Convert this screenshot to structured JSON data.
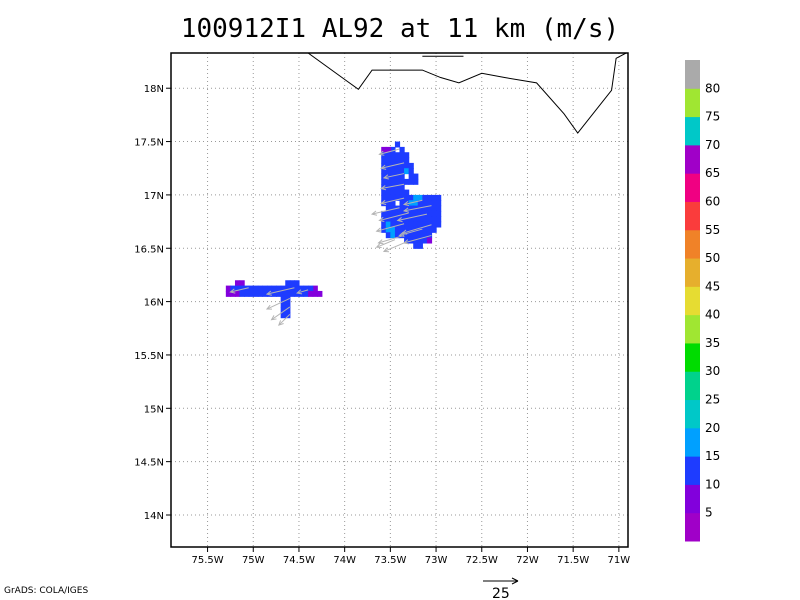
{
  "title": "100912I1 AL92 at 11 km (m/s)",
  "credit": "GrADS: COLA/IGES",
  "map": {
    "x_ticks": [
      "75.5W",
      "75W",
      "74.5W",
      "74W",
      "73.5W",
      "73W",
      "72.5W",
      "72W",
      "71.5W",
      "71W"
    ],
    "x_tick_values": [
      -75.5,
      -75,
      -74.5,
      -74,
      -73.5,
      -73,
      -72.5,
      -72,
      -71.5,
      -71
    ],
    "y_ticks": [
      "18N",
      "17.5N",
      "17N",
      "16.5N",
      "16N",
      "15.5N",
      "15N",
      "14.5N",
      "14N"
    ],
    "y_tick_values": [
      18,
      17.5,
      17,
      16.5,
      16,
      15.5,
      15,
      14.5,
      14
    ],
    "lon_range": [
      -75.9,
      -70.9
    ],
    "lat_range": [
      13.7,
      18.33
    ],
    "grid": true,
    "coastline_lonlat": [
      [
        -74.4,
        18.33
      ],
      [
        -73.98,
        18.07
      ],
      [
        -73.85,
        17.99
      ],
      [
        -73.7,
        18.17
      ],
      [
        -73.3,
        18.17
      ],
      [
        -73.15,
        18.17
      ],
      [
        -72.95,
        18.1
      ],
      [
        -72.75,
        18.05
      ],
      [
        -72.5,
        18.14
      ],
      [
        -72.25,
        18.1
      ],
      [
        -71.9,
        18.05
      ],
      [
        -71.6,
        17.76
      ],
      [
        -71.45,
        17.58
      ],
      [
        -71.08,
        17.98
      ],
      [
        -71.03,
        18.28
      ],
      [
        -70.92,
        18.33
      ]
    ],
    "coastline2_lonlat": [
      [
        -73.15,
        18.3
      ],
      [
        -72.7,
        18.3
      ]
    ],
    "wind_reference": {
      "label": "25",
      "speed_ms": 25
    }
  },
  "colorbar": {
    "labels": [
      "5",
      "10",
      "15",
      "20",
      "25",
      "30",
      "35",
      "40",
      "45",
      "50",
      "55",
      "60",
      "65",
      "70",
      "75",
      "80"
    ],
    "colors": [
      "#a000c8",
      "#8200dc",
      "#1e3cff",
      "#00a0ff",
      "#00c8c8",
      "#00d28c",
      "#00dc00",
      "#a0e632",
      "#e6dc32",
      "#e6af2d",
      "#f08228",
      "#fa3c3c",
      "#f00082",
      "#a000c8",
      "#00c8c8",
      "#a0e632",
      "#aaaaaa"
    ]
  },
  "field": {
    "cells": [
      [
        -73.45,
        17.45,
        "#1e3cff"
      ],
      [
        -73.5,
        17.4,
        "#1e3cff"
      ],
      [
        -73.55,
        17.4,
        "#8200dc"
      ],
      [
        -73.6,
        17.4,
        "#8200dc"
      ],
      [
        -73.4,
        17.4,
        "#1e3cff"
      ],
      [
        -73.6,
        17.35,
        "#1e3cff"
      ],
      [
        -73.55,
        17.35,
        "#1e3cff"
      ],
      [
        -73.5,
        17.35,
        "#1e3cff"
      ],
      [
        -73.45,
        17.35,
        "#1e3cff"
      ],
      [
        -73.4,
        17.35,
        "#1e3cff"
      ],
      [
        -73.35,
        17.35,
        "#1e3cff"
      ],
      [
        -73.6,
        17.3,
        "#1e3cff"
      ],
      [
        -73.55,
        17.3,
        "#1e3cff"
      ],
      [
        -73.5,
        17.3,
        "#1e3cff"
      ],
      [
        -73.45,
        17.3,
        "#1e3cff"
      ],
      [
        -73.4,
        17.3,
        "#1e3cff"
      ],
      [
        -73.35,
        17.3,
        "#1e3cff"
      ],
      [
        -73.6,
        17.25,
        "#1e3cff"
      ],
      [
        -73.55,
        17.25,
        "#1e3cff"
      ],
      [
        -73.5,
        17.25,
        "#1e3cff"
      ],
      [
        -73.45,
        17.25,
        "#1e3cff"
      ],
      [
        -73.4,
        17.25,
        "#1e3cff"
      ],
      [
        -73.35,
        17.25,
        "#1e3cff"
      ],
      [
        -73.3,
        17.25,
        "#1e3cff"
      ],
      [
        -73.6,
        17.2,
        "#1e3cff"
      ],
      [
        -73.55,
        17.2,
        "#1e3cff"
      ],
      [
        -73.5,
        17.2,
        "#1e3cff"
      ],
      [
        -73.45,
        17.2,
        "#1e3cff"
      ],
      [
        -73.4,
        17.2,
        "#1e3cff"
      ],
      [
        -73.35,
        17.2,
        "#00a0ff"
      ],
      [
        -73.3,
        17.2,
        "#1e3cff"
      ],
      [
        -73.6,
        17.15,
        "#1e3cff"
      ],
      [
        -73.55,
        17.15,
        "#1e3cff"
      ],
      [
        -73.5,
        17.15,
        "#1e3cff"
      ],
      [
        -73.45,
        17.15,
        "#1e3cff"
      ],
      [
        -73.4,
        17.15,
        "#1e3cff"
      ],
      [
        -73.3,
        17.15,
        "#1e3cff"
      ],
      [
        -73.25,
        17.15,
        "#1e3cff"
      ],
      [
        -73.6,
        17.1,
        "#1e3cff"
      ],
      [
        -73.55,
        17.1,
        "#1e3cff"
      ],
      [
        -73.5,
        17.1,
        "#1e3cff"
      ],
      [
        -73.45,
        17.1,
        "#1e3cff"
      ],
      [
        -73.4,
        17.1,
        "#1e3cff"
      ],
      [
        -73.35,
        17.1,
        "#1e3cff"
      ],
      [
        -73.3,
        17.1,
        "#1e3cff"
      ],
      [
        -73.25,
        17.1,
        "#1e3cff"
      ],
      [
        -73.6,
        17.05,
        "#1e3cff"
      ],
      [
        -73.55,
        17.05,
        "#1e3cff"
      ],
      [
        -73.5,
        17.05,
        "#1e3cff"
      ],
      [
        -73.45,
        17.05,
        "#1e3cff"
      ],
      [
        -73.4,
        17.05,
        "#1e3cff"
      ],
      [
        -73.6,
        17.0,
        "#1e3cff"
      ],
      [
        -73.55,
        17.0,
        "#1e3cff"
      ],
      [
        -73.5,
        17.0,
        "#1e3cff"
      ],
      [
        -73.45,
        17.0,
        "#1e3cff"
      ],
      [
        -73.4,
        17.0,
        "#1e3cff"
      ],
      [
        -73.35,
        17.0,
        "#1e3cff"
      ],
      [
        -73.6,
        16.95,
        "#1e3cff"
      ],
      [
        -73.55,
        16.95,
        "#1e3cff"
      ],
      [
        -73.5,
        16.95,
        "#1e3cff"
      ],
      [
        -73.45,
        16.95,
        "#1e3cff"
      ],
      [
        -73.4,
        16.95,
        "#1e3cff"
      ],
      [
        -73.35,
        16.95,
        "#1e3cff"
      ],
      [
        -73.3,
        16.95,
        "#1e3cff"
      ],
      [
        -73.25,
        16.95,
        "#00a0ff"
      ],
      [
        -73.2,
        16.95,
        "#00a0ff"
      ],
      [
        -73.15,
        16.95,
        "#1e3cff"
      ],
      [
        -73.1,
        16.95,
        "#1e3cff"
      ],
      [
        -73.05,
        16.95,
        "#1e3cff"
      ],
      [
        -73.0,
        16.95,
        "#1e3cff"
      ],
      [
        -73.6,
        16.9,
        "#1e3cff"
      ],
      [
        -73.55,
        16.9,
        "#1e3cff"
      ],
      [
        -73.5,
        16.9,
        "#1e3cff"
      ],
      [
        -73.4,
        16.9,
        "#1e3cff"
      ],
      [
        -73.35,
        16.9,
        "#1e3cff"
      ],
      [
        -73.3,
        16.9,
        "#00a0ff"
      ],
      [
        -73.25,
        16.9,
        "#00a0ff"
      ],
      [
        -73.2,
        16.9,
        "#1e3cff"
      ],
      [
        -73.15,
        16.9,
        "#1e3cff"
      ],
      [
        -73.1,
        16.9,
        "#1e3cff"
      ],
      [
        -73.05,
        16.9,
        "#1e3cff"
      ],
      [
        -73.0,
        16.9,
        "#1e3cff"
      ],
      [
        -73.55,
        16.85,
        "#1e3cff"
      ],
      [
        -73.5,
        16.85,
        "#1e3cff"
      ],
      [
        -73.45,
        16.85,
        "#1e3cff"
      ],
      [
        -73.4,
        16.85,
        "#1e3cff"
      ],
      [
        -73.35,
        16.85,
        "#1e3cff"
      ],
      [
        -73.3,
        16.85,
        "#1e3cff"
      ],
      [
        -73.25,
        16.85,
        "#1e3cff"
      ],
      [
        -73.2,
        16.85,
        "#1e3cff"
      ],
      [
        -73.15,
        16.85,
        "#1e3cff"
      ],
      [
        -73.1,
        16.85,
        "#1e3cff"
      ],
      [
        -73.05,
        16.85,
        "#1e3cff"
      ],
      [
        -73.0,
        16.85,
        "#1e3cff"
      ],
      [
        -73.6,
        16.8,
        "#1e3cff"
      ],
      [
        -73.55,
        16.8,
        "#1e3cff"
      ],
      [
        -73.5,
        16.8,
        "#1e3cff"
      ],
      [
        -73.45,
        16.8,
        "#1e3cff"
      ],
      [
        -73.4,
        16.8,
        "#1e3cff"
      ],
      [
        -73.35,
        16.8,
        "#1e3cff"
      ],
      [
        -73.3,
        16.8,
        "#1e3cff"
      ],
      [
        -73.25,
        16.8,
        "#1e3cff"
      ],
      [
        -73.2,
        16.8,
        "#1e3cff"
      ],
      [
        -73.15,
        16.8,
        "#1e3cff"
      ],
      [
        -73.1,
        16.8,
        "#1e3cff"
      ],
      [
        -73.05,
        16.8,
        "#1e3cff"
      ],
      [
        -73.0,
        16.8,
        "#1e3cff"
      ],
      [
        -73.6,
        16.75,
        "#1e3cff"
      ],
      [
        -73.55,
        16.75,
        "#1e3cff"
      ],
      [
        -73.5,
        16.75,
        "#1e3cff"
      ],
      [
        -73.45,
        16.75,
        "#1e3cff"
      ],
      [
        -73.4,
        16.75,
        "#1e3cff"
      ],
      [
        -73.35,
        16.75,
        "#1e3cff"
      ],
      [
        -73.3,
        16.75,
        "#1e3cff"
      ],
      [
        -73.25,
        16.75,
        "#1e3cff"
      ],
      [
        -73.2,
        16.75,
        "#1e3cff"
      ],
      [
        -73.15,
        16.75,
        "#1e3cff"
      ],
      [
        -73.1,
        16.75,
        "#1e3cff"
      ],
      [
        -73.05,
        16.75,
        "#1e3cff"
      ],
      [
        -73.0,
        16.75,
        "#1e3cff"
      ],
      [
        -73.6,
        16.7,
        "#1e3cff"
      ],
      [
        -73.55,
        16.7,
        "#00a0ff"
      ],
      [
        -73.5,
        16.7,
        "#1e3cff"
      ],
      [
        -73.45,
        16.7,
        "#1e3cff"
      ],
      [
        -73.4,
        16.7,
        "#1e3cff"
      ],
      [
        -73.35,
        16.7,
        "#1e3cff"
      ],
      [
        -73.3,
        16.7,
        "#1e3cff"
      ],
      [
        -73.25,
        16.7,
        "#1e3cff"
      ],
      [
        -73.2,
        16.7,
        "#1e3cff"
      ],
      [
        -73.15,
        16.7,
        "#1e3cff"
      ],
      [
        -73.1,
        16.7,
        "#1e3cff"
      ],
      [
        -73.05,
        16.7,
        "#1e3cff"
      ],
      [
        -73.0,
        16.7,
        "#1e3cff"
      ],
      [
        -73.6,
        16.65,
        "#1e3cff"
      ],
      [
        -73.55,
        16.65,
        "#00a0ff"
      ],
      [
        -73.5,
        16.65,
        "#00a0ff"
      ],
      [
        -73.45,
        16.65,
        "#1e3cff"
      ],
      [
        -73.4,
        16.65,
        "#1e3cff"
      ],
      [
        -73.35,
        16.65,
        "#1e3cff"
      ],
      [
        -73.3,
        16.65,
        "#1e3cff"
      ],
      [
        -73.25,
        16.65,
        "#1e3cff"
      ],
      [
        -73.2,
        16.65,
        "#1e3cff"
      ],
      [
        -73.15,
        16.65,
        "#1e3cff"
      ],
      [
        -73.1,
        16.65,
        "#1e3cff"
      ],
      [
        -73.05,
        16.65,
        "#1e3cff"
      ],
      [
        -73.55,
        16.6,
        "#1e3cff"
      ],
      [
        -73.5,
        16.6,
        "#00a0ff"
      ],
      [
        -73.45,
        16.6,
        "#1e3cff"
      ],
      [
        -73.4,
        16.6,
        "#1e3cff"
      ],
      [
        -73.35,
        16.6,
        "#1e3cff"
      ],
      [
        -73.3,
        16.6,
        "#1e3cff"
      ],
      [
        -73.25,
        16.6,
        "#1e3cff"
      ],
      [
        -73.2,
        16.6,
        "#1e3cff"
      ],
      [
        -73.15,
        16.6,
        "#1e3cff"
      ],
      [
        -73.1,
        16.6,
        "#1e3cff"
      ],
      [
        -73.35,
        16.55,
        "#1e3cff"
      ],
      [
        -73.3,
        16.55,
        "#1e3cff"
      ],
      [
        -73.25,
        16.55,
        "#1e3cff"
      ],
      [
        -73.2,
        16.55,
        "#1e3cff"
      ],
      [
        -73.15,
        16.55,
        "#1e3cff"
      ],
      [
        -73.1,
        16.55,
        "#8200dc"
      ],
      [
        -73.25,
        16.5,
        "#1e3cff"
      ],
      [
        -73.2,
        16.5,
        "#1e3cff"
      ],
      [
        -75.2,
        16.15,
        "#8200dc"
      ],
      [
        -75.15,
        16.15,
        "#8200dc"
      ],
      [
        -74.65,
        16.15,
        "#1e3cff"
      ],
      [
        -74.6,
        16.15,
        "#1e3cff"
      ],
      [
        -74.55,
        16.15,
        "#1e3cff"
      ],
      [
        -74.35,
        16.1,
        "#8200dc"
      ],
      [
        -75.3,
        16.1,
        "#8200dc"
      ],
      [
        -75.25,
        16.1,
        "#1e3cff"
      ],
      [
        -75.2,
        16.1,
        "#1e3cff"
      ],
      [
        -75.15,
        16.1,
        "#1e3cff"
      ],
      [
        -75.1,
        16.1,
        "#1e3cff"
      ],
      [
        -75.05,
        16.1,
        "#1e3cff"
      ],
      [
        -75.0,
        16.1,
        "#1e3cff"
      ],
      [
        -74.95,
        16.1,
        "#1e3cff"
      ],
      [
        -74.9,
        16.1,
        "#1e3cff"
      ],
      [
        -74.85,
        16.1,
        "#1e3cff"
      ],
      [
        -74.8,
        16.1,
        "#1e3cff"
      ],
      [
        -74.75,
        16.1,
        "#1e3cff"
      ],
      [
        -74.7,
        16.1,
        "#1e3cff"
      ],
      [
        -74.65,
        16.1,
        "#1e3cff"
      ],
      [
        -74.6,
        16.1,
        "#1e3cff"
      ],
      [
        -74.55,
        16.1,
        "#1e3cff"
      ],
      [
        -74.5,
        16.1,
        "#1e3cff"
      ],
      [
        -74.45,
        16.1,
        "#1e3cff"
      ],
      [
        -74.4,
        16.1,
        "#1e3cff"
      ],
      [
        -75.3,
        16.05,
        "#8200dc"
      ],
      [
        -75.25,
        16.05,
        "#8200dc"
      ],
      [
        -75.2,
        16.05,
        "#8200dc"
      ],
      [
        -75.15,
        16.05,
        "#1e3cff"
      ],
      [
        -75.1,
        16.05,
        "#1e3cff"
      ],
      [
        -75.05,
        16.05,
        "#1e3cff"
      ],
      [
        -75.0,
        16.05,
        "#1e3cff"
      ],
      [
        -74.95,
        16.05,
        "#1e3cff"
      ],
      [
        -74.9,
        16.05,
        "#1e3cff"
      ],
      [
        -74.85,
        16.05,
        "#1e3cff"
      ],
      [
        -74.8,
        16.05,
        "#1e3cff"
      ],
      [
        -74.75,
        16.05,
        "#1e3cff"
      ],
      [
        -74.7,
        16.05,
        "#1e3cff"
      ],
      [
        -74.65,
        16.05,
        "#1e3cff"
      ],
      [
        -74.6,
        16.05,
        "#1e3cff"
      ],
      [
        -74.55,
        16.05,
        "#1e3cff"
      ],
      [
        -74.5,
        16.05,
        "#1e3cff"
      ],
      [
        -74.45,
        16.05,
        "#1e3cff"
      ],
      [
        -74.4,
        16.05,
        "#8200dc"
      ],
      [
        -74.35,
        16.05,
        "#8200dc"
      ],
      [
        -74.3,
        16.05,
        "#8200dc"
      ],
      [
        -74.7,
        16.0,
        "#1e3cff"
      ],
      [
        -74.65,
        16.0,
        "#1e3cff"
      ],
      [
        -74.7,
        15.95,
        "#1e3cff"
      ],
      [
        -74.65,
        15.95,
        "#1e3cff"
      ],
      [
        -74.7,
        15.9,
        "#1e3cff"
      ],
      [
        -74.65,
        15.9,
        "#1e3cff"
      ],
      [
        -74.7,
        15.85,
        "#1e3cff"
      ],
      [
        -74.65,
        15.85,
        "#1e3cff"
      ]
    ],
    "vectors": [
      [
        -73.4,
        17.43,
        -0.22,
        -0.05
      ],
      [
        -73.35,
        17.3,
        -0.25,
        -0.05
      ],
      [
        -73.35,
        17.2,
        -0.22,
        -0.04
      ],
      [
        -73.35,
        17.1,
        -0.25,
        -0.04
      ],
      [
        -73.35,
        16.97,
        -0.25,
        -0.05
      ],
      [
        -73.4,
        16.88,
        -0.3,
        -0.06
      ],
      [
        -73.3,
        16.83,
        -0.32,
        -0.07
      ],
      [
        -73.35,
        16.73,
        -0.3,
        -0.07
      ],
      [
        -73.35,
        16.62,
        -0.28,
        -0.07
      ],
      [
        -73.35,
        16.55,
        -0.22,
        -0.08
      ],
      [
        -73.45,
        16.58,
        -0.2,
        -0.07
      ],
      [
        -73.15,
        16.95,
        -0.2,
        -0.04
      ],
      [
        -73.05,
        16.9,
        -0.3,
        -0.05
      ],
      [
        -73.1,
        16.82,
        -0.32,
        -0.06
      ],
      [
        -73.05,
        16.72,
        -0.32,
        -0.08
      ],
      [
        -73.05,
        16.62,
        -0.3,
        -0.07
      ],
      [
        -73.15,
        16.68,
        -0.25,
        -0.06
      ],
      [
        -75.05,
        16.13,
        -0.2,
        -0.04
      ],
      [
        -74.55,
        16.13,
        -0.3,
        -0.06
      ],
      [
        -74.4,
        16.11,
        -0.12,
        -0.03
      ],
      [
        -74.6,
        16.03,
        -0.25,
        -0.1
      ],
      [
        -74.6,
        15.95,
        -0.2,
        -0.12
      ],
      [
        -74.6,
        15.88,
        -0.12,
        -0.1
      ]
    ]
  }
}
